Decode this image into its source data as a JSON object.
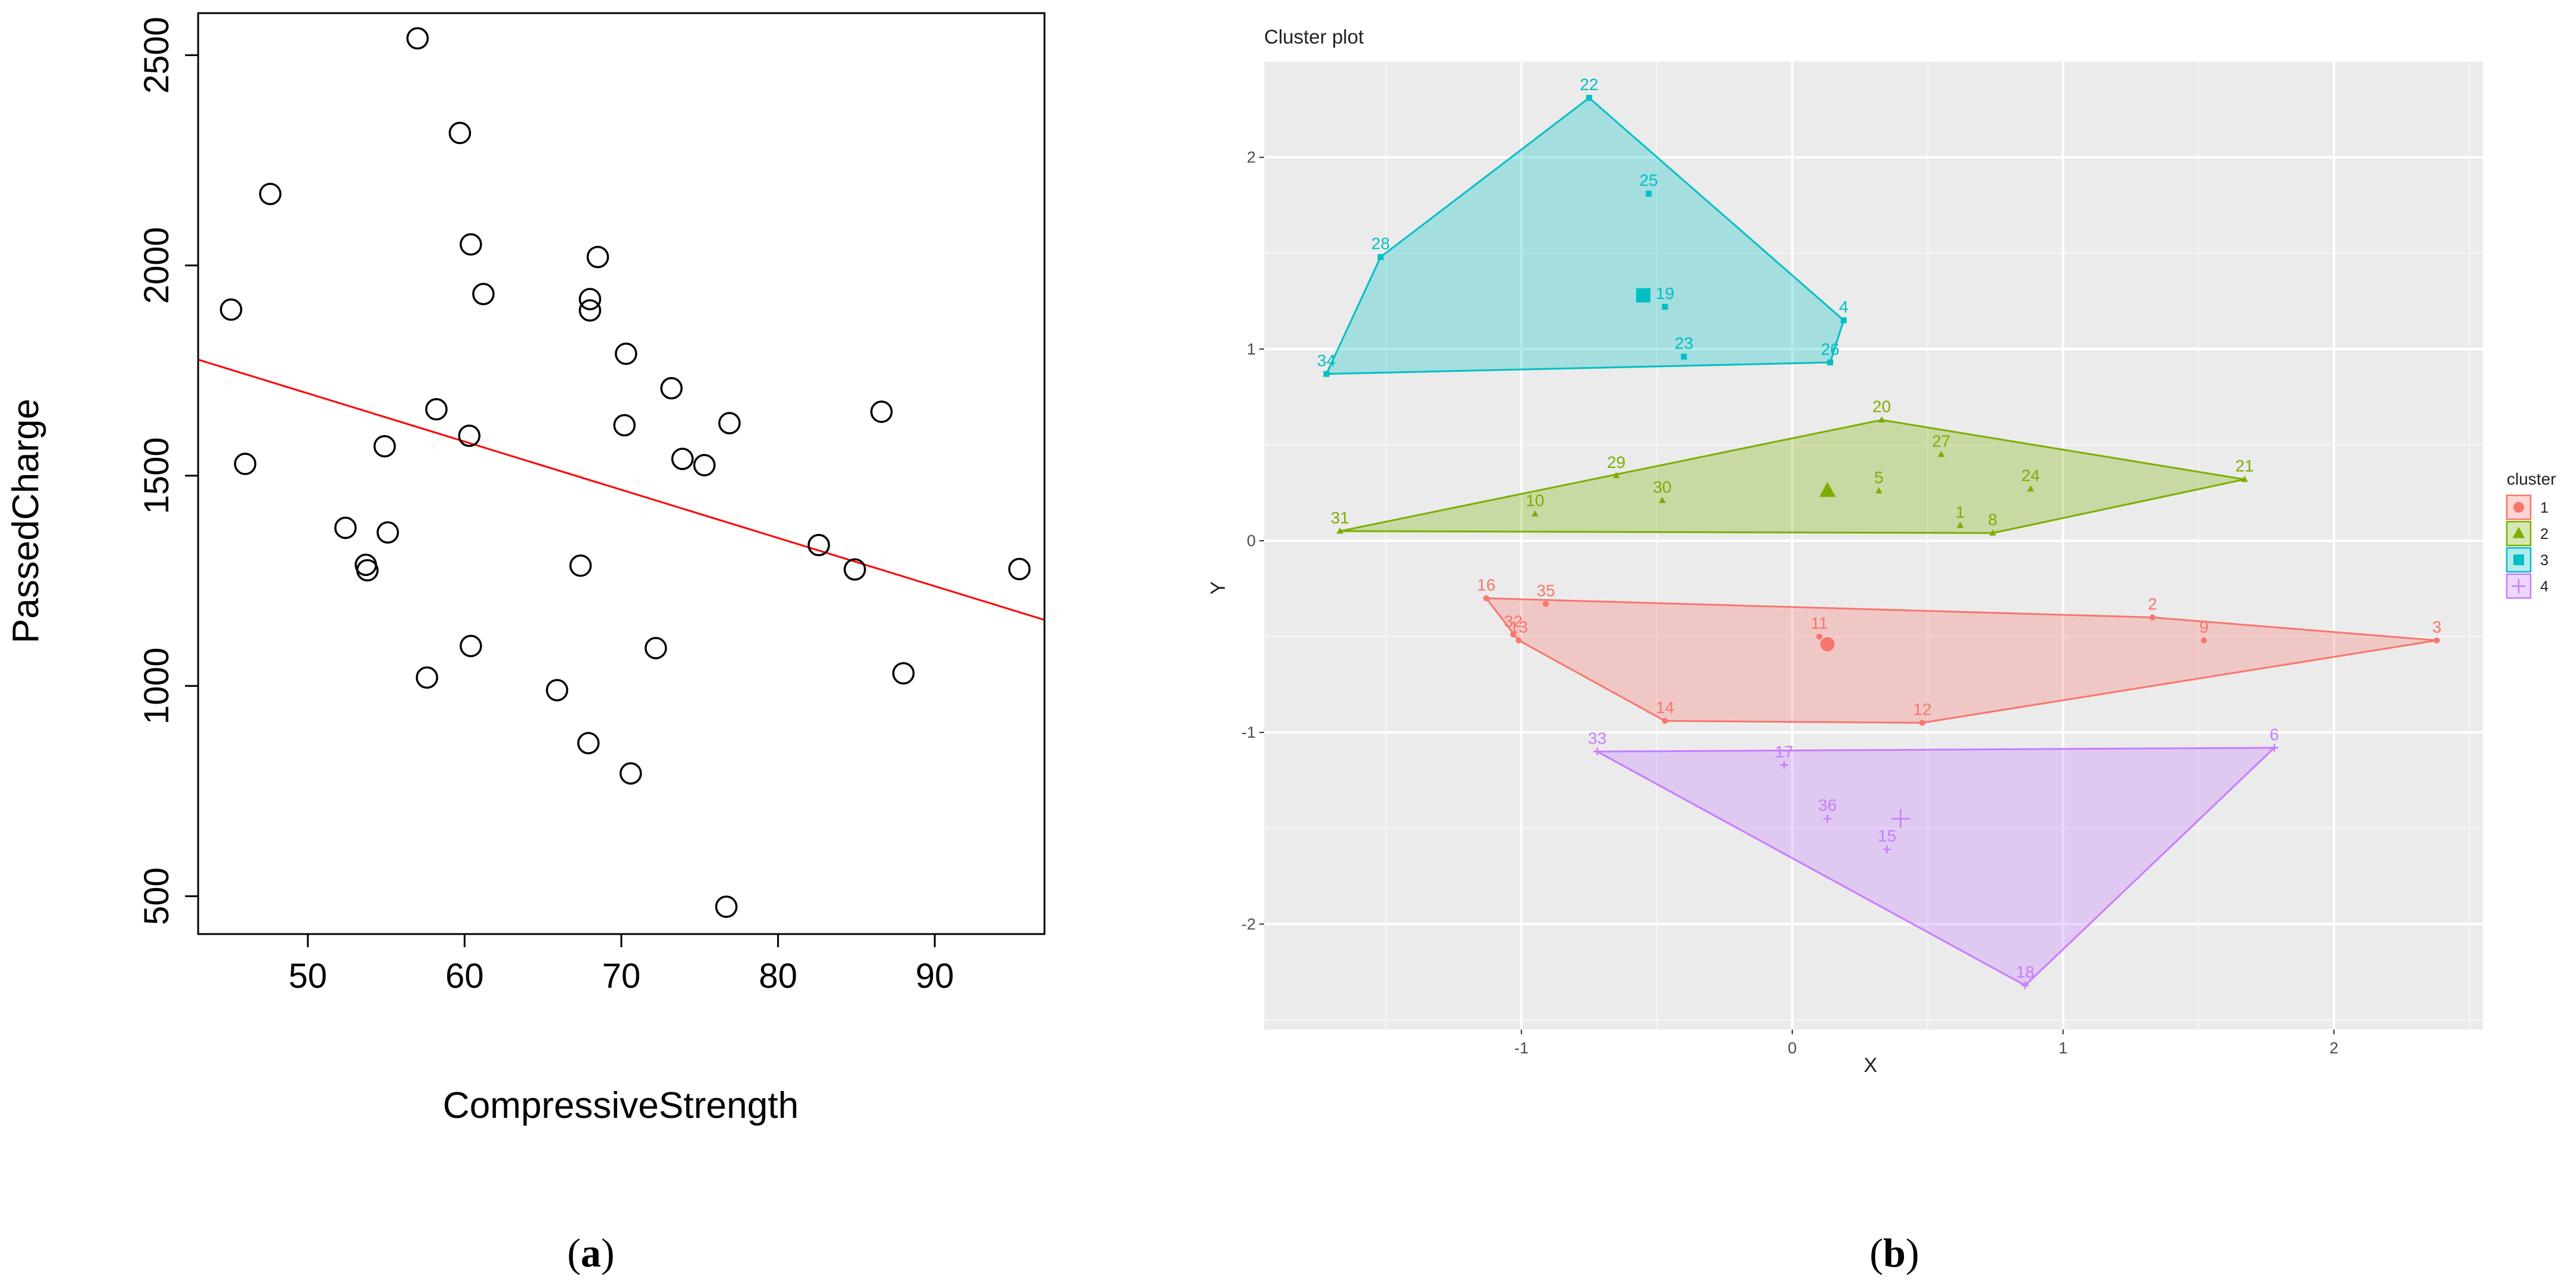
{
  "chart_data": [
    {
      "type": "scatter",
      "panel_label": "(a)",
      "panel_letter": "a",
      "xlabel": "CompressiveStrength",
      "ylabel": "PassedCharge",
      "xlim": [
        43,
        97
      ],
      "ylim": [
        410,
        2600
      ],
      "xticks": [
        50,
        60,
        70,
        80,
        90
      ],
      "yticks": [
        500,
        1000,
        1500,
        2000,
        2500
      ],
      "grid": false,
      "points": [
        [
          57.0,
          2540
        ],
        [
          59.7,
          2315
        ],
        [
          47.6,
          2170
        ],
        [
          60.4,
          2050
        ],
        [
          68.5,
          2020
        ],
        [
          61.2,
          1932
        ],
        [
          68.0,
          1920
        ],
        [
          45.1,
          1895
        ],
        [
          68.0,
          1893
        ],
        [
          70.3,
          1790
        ],
        [
          73.2,
          1708
        ],
        [
          58.2,
          1658
        ],
        [
          86.6,
          1652
        ],
        [
          76.9,
          1625
        ],
        [
          70.2,
          1620
        ],
        [
          60.3,
          1595
        ],
        [
          54.9,
          1570
        ],
        [
          73.9,
          1540
        ],
        [
          46.0,
          1528
        ],
        [
          75.3,
          1525
        ],
        [
          52.4,
          1376
        ],
        [
          55.1,
          1365
        ],
        [
          82.6,
          1335
        ],
        [
          53.7,
          1288
        ],
        [
          67.4,
          1286
        ],
        [
          95.4,
          1278
        ],
        [
          53.8,
          1275
        ],
        [
          84.9,
          1277
        ],
        [
          60.4,
          1095
        ],
        [
          72.2,
          1090
        ],
        [
          88.0,
          1030
        ],
        [
          57.6,
          1020
        ],
        [
          65.9,
          990
        ],
        [
          67.9,
          864
        ],
        [
          70.6,
          792
        ],
        [
          76.7,
          475
        ]
      ],
      "regression_line": {
        "x": [
          43,
          97
        ],
        "y": [
          1776,
          1157
        ],
        "color": "#ff0000"
      }
    },
    {
      "type": "scatter",
      "panel_label": "(b)",
      "panel_letter": "b",
      "title": "Cluster plot",
      "xlabel": "X",
      "ylabel": "Y",
      "xlim": [
        -1.95,
        2.55
      ],
      "ylim": [
        -2.55,
        2.5
      ],
      "xticks": [
        -1,
        0,
        1,
        2
      ],
      "yticks": [
        -2,
        -1,
        0,
        1,
        2
      ],
      "grid": true,
      "legend_title": "cluster",
      "legend_position": "right",
      "clusters": [
        {
          "name": "1",
          "color": "#f8766d",
          "marker": "circle",
          "center": [
            0.13,
            -0.54
          ],
          "points": [
            {
              "label": "16",
              "x": -1.13,
              "y": -0.3
            },
            {
              "label": "35",
              "x": -0.91,
              "y": -0.33
            },
            {
              "label": "32",
              "x": -1.03,
              "y": -0.49
            },
            {
              "label": "13",
              "x": -1.01,
              "y": -0.52
            },
            {
              "label": "11",
              "x": 0.1,
              "y": -0.5
            },
            {
              "label": "2",
              "x": 1.33,
              "y": -0.4
            },
            {
              "label": "9",
              "x": 1.52,
              "y": -0.52
            },
            {
              "label": "3",
              "x": 2.38,
              "y": -0.52
            },
            {
              "label": "14",
              "x": -0.47,
              "y": -0.94
            },
            {
              "label": "12",
              "x": 0.48,
              "y": -0.95
            }
          ],
          "hull": [
            "16",
            "13",
            "14",
            "12",
            "3",
            "2"
          ]
        },
        {
          "name": "2",
          "color": "#7cae00",
          "marker": "triangle",
          "center": [
            0.13,
            0.26
          ],
          "points": [
            {
              "label": "20",
              "x": 0.33,
              "y": 0.63
            },
            {
              "label": "27",
              "x": 0.55,
              "y": 0.45
            },
            {
              "label": "21",
              "x": 1.67,
              "y": 0.32
            },
            {
              "label": "24",
              "x": 0.88,
              "y": 0.27
            },
            {
              "label": "29",
              "x": -0.65,
              "y": 0.34
            },
            {
              "label": "5",
              "x": 0.32,
              "y": 0.26
            },
            {
              "label": "30",
              "x": -0.48,
              "y": 0.21
            },
            {
              "label": "10",
              "x": -0.95,
              "y": 0.14
            },
            {
              "label": "1",
              "x": 0.62,
              "y": 0.08
            },
            {
              "label": "8",
              "x": 0.74,
              "y": 0.04
            },
            {
              "label": "31",
              "x": -1.67,
              "y": 0.05
            }
          ],
          "hull": [
            "31",
            "20",
            "21",
            "8"
          ]
        },
        {
          "name": "3",
          "color": "#00bfc4",
          "marker": "square",
          "center": [
            -0.55,
            1.28
          ],
          "points": [
            {
              "label": "22",
              "x": -0.75,
              "y": 2.31
            },
            {
              "label": "25",
              "x": -0.53,
              "y": 1.81
            },
            {
              "label": "28",
              "x": -1.52,
              "y": 1.48
            },
            {
              "label": "19",
              "x": -0.47,
              "y": 1.22
            },
            {
              "label": "4",
              "x": 0.19,
              "y": 1.15
            },
            {
              "label": "23",
              "x": -0.4,
              "y": 0.96
            },
            {
              "label": "26",
              "x": 0.14,
              "y": 0.93
            },
            {
              "label": "34",
              "x": -1.72,
              "y": 0.87
            }
          ],
          "hull": [
            "22",
            "4",
            "26",
            "34",
            "28"
          ]
        },
        {
          "name": "4",
          "color": "#c77cff",
          "marker": "plus",
          "center": [
            0.4,
            -1.45
          ],
          "points": [
            {
              "label": "33",
              "x": -0.72,
              "y": -1.1
            },
            {
              "label": "17",
              "x": -0.03,
              "y": -1.17
            },
            {
              "label": "6",
              "x": 1.78,
              "y": -1.08
            },
            {
              "label": "36",
              "x": 0.13,
              "y": -1.45
            },
            {
              "label": "15",
              "x": 0.35,
              "y": -1.61
            },
            {
              "label": "18",
              "x": 0.86,
              "y": -2.32
            }
          ],
          "hull": [
            "33",
            "6",
            "18"
          ]
        }
      ]
    }
  ]
}
